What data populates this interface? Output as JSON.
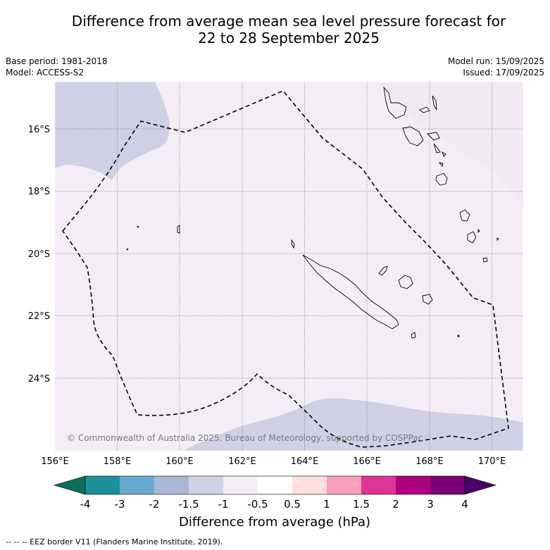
{
  "title_line1": "Difference from average mean sea level pressure forecast for",
  "title_line2": "22 to 28 September 2025",
  "base_period": "Base period: 1981-2018",
  "model": "Model: ACCESS-S2",
  "model_run": "Model run: 15/09/2025",
  "issued": "Issued: 17/09/2025",
  "copyright": "© Commonwealth of Australia 2025, Bureau of Meteorology, supported by COSPPac",
  "lon_labels": [
    "156°E",
    "158°E",
    "160°E",
    "162°E",
    "164°E",
    "166°E",
    "168°E",
    "170°E"
  ],
  "lat_labels": [
    "16°S",
    "18°S",
    "20°S",
    "22°S",
    "24°S"
  ],
  "colorbar": {
    "label": "Difference from average (hPa)",
    "ticks": [
      "-4",
      "-3",
      "-2",
      "-1.5",
      "-1",
      "-0.5",
      "0.5",
      "1",
      "1.5",
      "2",
      "3",
      "4"
    ],
    "colors": [
      "#0f6b5c",
      "#1b9099",
      "#67a9cf",
      "#aab6d6",
      "#d2d2e6",
      "#f3edf6",
      "#ffffff",
      "#fde0dd",
      "#f99fbb",
      "#dd3497",
      "#ae017e",
      "#7a0177",
      "#49006a"
    ]
  },
  "footer": "--  --  -- EEZ border V11 (Flanders Marine Institute, 2019).",
  "map_colors": {
    "background": "#f4edf6",
    "negative_patch": "#d0d1e6"
  }
}
